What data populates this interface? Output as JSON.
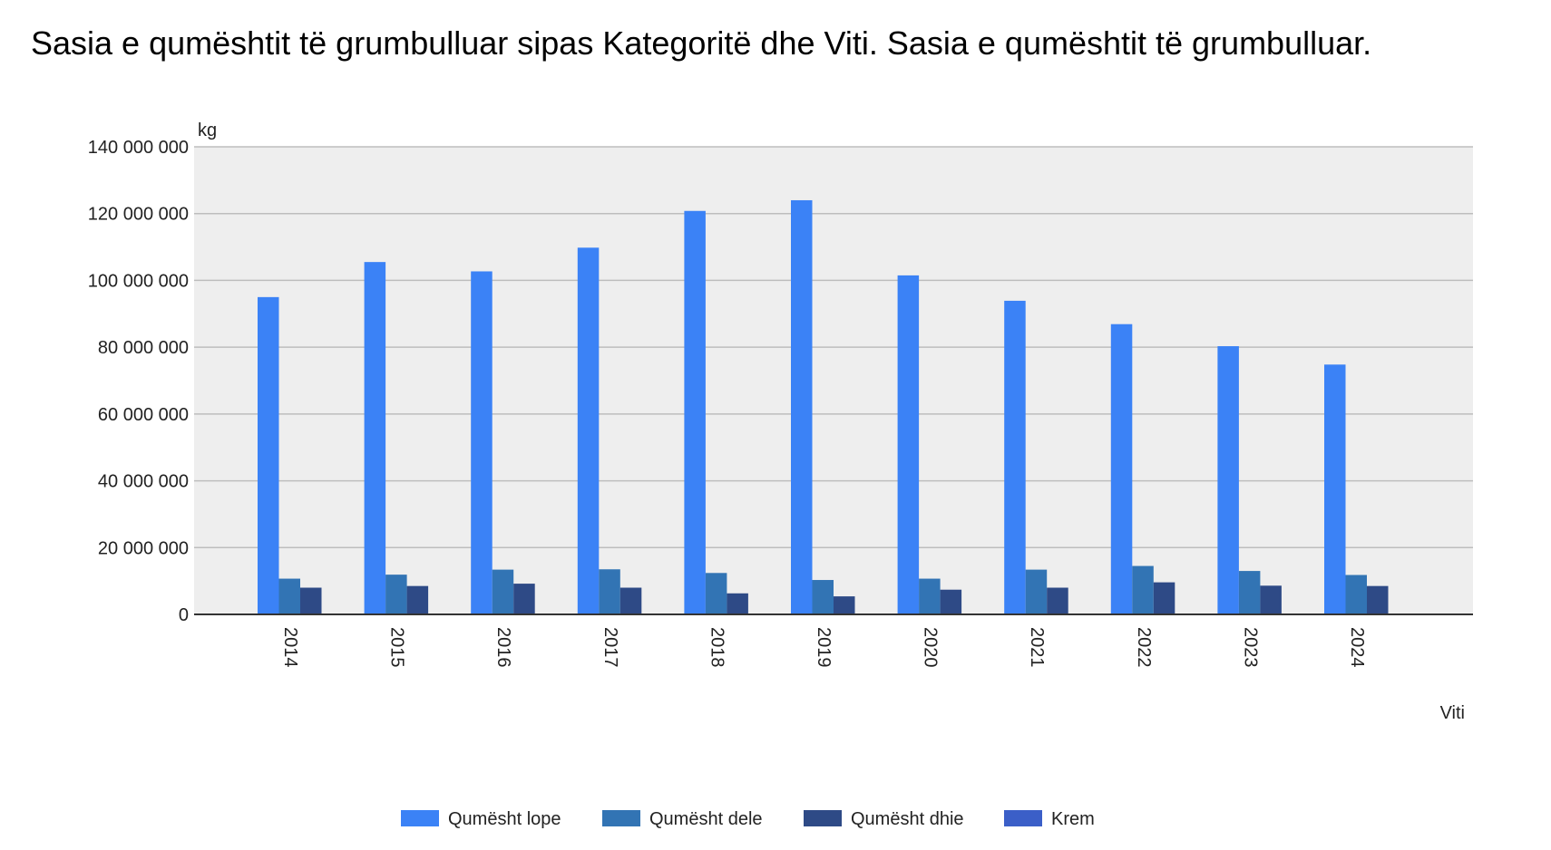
{
  "chart_data": {
    "type": "bar",
    "title": "Sasia e qumështit të grumbulluar sipas Kategoritë dhe Viti. Sasia e qumështit të grumbulluar.",
    "xlabel": "Viti",
    "ylabel": "kg",
    "ylim": [
      0,
      140000000
    ],
    "yticks": [
      0,
      20000000,
      40000000,
      60000000,
      80000000,
      100000000,
      120000000,
      140000000
    ],
    "ytick_labels": [
      "0",
      "20 000 000",
      "40 000 000",
      "60 000 000",
      "80 000 000",
      "100 000 000",
      "120 000 000",
      "140 000 000"
    ],
    "grid": true,
    "legend_position": "bottom",
    "categories": [
      "2014",
      "2015",
      "2016",
      "2017",
      "2018",
      "2019",
      "2020",
      "2021",
      "2022",
      "2023",
      "2024"
    ],
    "series": [
      {
        "name": "Qumësht lope",
        "color": "#3b82f6",
        "values": [
          95000000,
          105500000,
          102700000,
          109800000,
          120800000,
          124000000,
          101500000,
          93900000,
          86900000,
          80300000,
          74800000
        ]
      },
      {
        "name": "Qumësht dele",
        "color": "#3274b4",
        "values": [
          10700000,
          11900000,
          13400000,
          13500000,
          12400000,
          10300000,
          10700000,
          13400000,
          14500000,
          13000000,
          11800000
        ]
      },
      {
        "name": "Qumësht dhie",
        "color": "#2e4a86",
        "values": [
          8000000,
          8500000,
          9200000,
          8000000,
          6300000,
          5400000,
          7400000,
          8000000,
          9600000,
          8600000,
          8500000
        ]
      },
      {
        "name": "Krem",
        "color": "#3b5fc8",
        "values": [
          0,
          0,
          0,
          0,
          0,
          0,
          0,
          0,
          0,
          0,
          0
        ]
      }
    ]
  }
}
